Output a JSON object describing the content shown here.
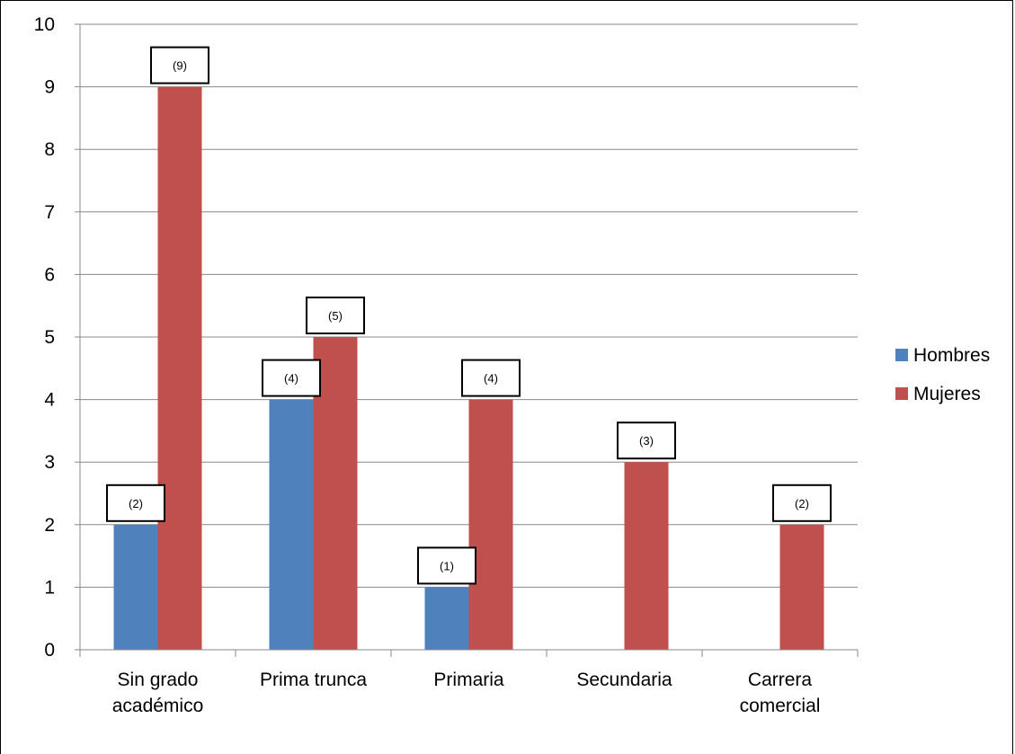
{
  "chart_data": {
    "type": "bar",
    "categories": [
      [
        "Sin grado",
        "académico"
      ],
      [
        "Prima trunca"
      ],
      [
        "Primaria"
      ],
      [
        "Secundaria"
      ],
      [
        "Carrera",
        "comercial"
      ]
    ],
    "series": [
      {
        "name": "Hombres",
        "color": "#4f81bd",
        "values": [
          2,
          4,
          1,
          0,
          0
        ],
        "labels": [
          "(2)",
          "(4)",
          "(1)",
          null,
          null
        ]
      },
      {
        "name": "Mujeres",
        "color": "#c0504d",
        "values": [
          9,
          5,
          4,
          3,
          2
        ],
        "labels": [
          "(9)",
          "(5)",
          "(4)",
          "(3)",
          "(2)"
        ]
      }
    ],
    "ylim": [
      0,
      10
    ],
    "yticks": [
      "0",
      "1",
      "2",
      "3",
      "4",
      "5",
      "6",
      "7",
      "8",
      "9",
      "10"
    ],
    "grid": true,
    "legend_position": "right"
  }
}
